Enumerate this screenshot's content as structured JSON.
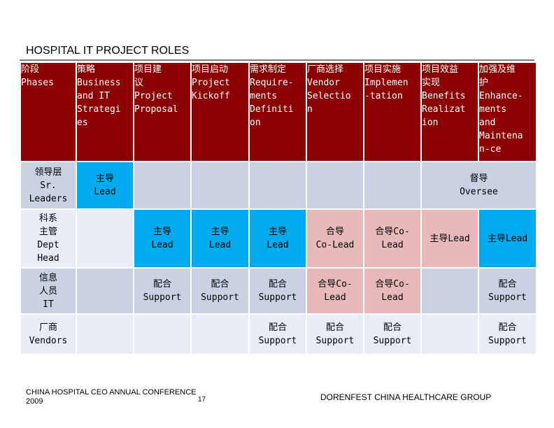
{
  "title": "HOSPITAL IT PROJECT ROLES",
  "colors": {
    "header": "#8b0000",
    "lead": "#00aaee",
    "co_lead": "#e8b9b9",
    "row_dark": "#c9d2e3",
    "row_light": "#e8ecf4"
  },
  "header": {
    "phases": [
      "阶段",
      "Phases"
    ],
    "strategy": [
      "策略",
      "Business",
      "and IT",
      "Strategi",
      "es"
    ],
    "proposal": [
      "项目建",
      "议",
      "Project",
      "Proposal"
    ],
    "kickoff": [
      "项目启动",
      "Project",
      "Kickoff"
    ],
    "requirements": [
      "需求制定",
      "Require-",
      "ments",
      "Definiti",
      "on"
    ],
    "vendor": [
      "厂商选择",
      "Vendor",
      "Selectio",
      "n"
    ],
    "implementation": [
      "项目实施",
      "Implemen",
      "-tation"
    ],
    "benefits": [
      "项目效益",
      "实现",
      "Benefits",
      "Realizat",
      "ion"
    ],
    "enhancement": [
      "加强及维",
      "护",
      "Enhance-",
      "ments",
      "and",
      "Maintena",
      "n-ce"
    ]
  },
  "rows": {
    "leaders": {
      "label": [
        "领导层",
        "Sr.",
        "Leaders"
      ],
      "strategy": [
        "主导",
        "Lead"
      ],
      "oversee": [
        "督导",
        "Oversee"
      ]
    },
    "dept_head": {
      "label": [
        "科系",
        "主管",
        "Dept",
        "Head"
      ],
      "proposal": [
        "主导",
        "Lead"
      ],
      "kickoff": [
        "主导",
        "Lead"
      ],
      "requirements": [
        "主导",
        "Lead"
      ],
      "vendor": [
        "合导",
        "Co-Lead"
      ],
      "implementation": [
        "合导Co-",
        "Lead"
      ],
      "benefits": "主导Lead",
      "enhancement": "主导Lead"
    },
    "it": {
      "label": [
        "信息",
        "人员",
        "IT"
      ],
      "proposal": [
        "配合",
        "Support"
      ],
      "kickoff": [
        "配合",
        "Support"
      ],
      "requirements": [
        "配合",
        "Support"
      ],
      "vendor": [
        "合导Co-",
        "Lead"
      ],
      "implementation": [
        "合导Co-",
        "Lead"
      ],
      "enhancement": [
        "配合",
        "Support"
      ]
    },
    "vendors": {
      "label": [
        "厂商",
        "Vendors"
      ],
      "requirements": [
        "配合",
        "Support"
      ],
      "vendor": [
        "配合",
        "Support"
      ],
      "implementation": [
        "配合",
        "Support"
      ],
      "enhancement": [
        "配合",
        "Support"
      ]
    }
  },
  "footer": {
    "conference": [
      "CHINA HOSPITAL CEO ANNUAL CONFERENCE",
      "2009"
    ],
    "page": "17",
    "company": "DORENFEST CHINA HEALTHCARE GROUP"
  }
}
